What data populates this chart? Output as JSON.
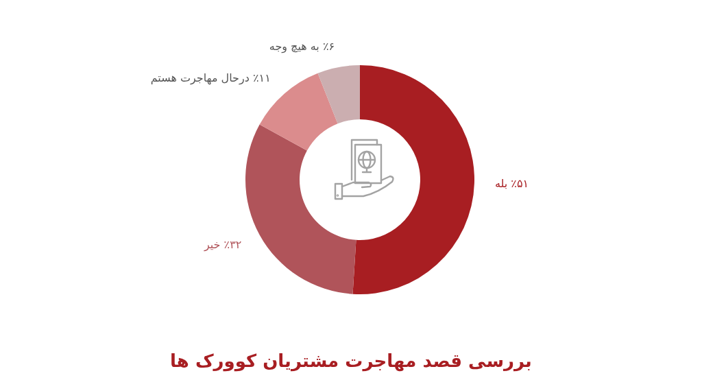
{
  "chart_data": {
    "type": "donut",
    "title": "بررسی قصد مهاجرت مشتریان کوورک ها",
    "categories": [
      "بله",
      "خیر",
      "درحال مهاجرت هستم",
      "به هیچ وجه"
    ],
    "values": [
      51,
      32,
      11,
      6
    ],
    "value_labels": [
      "٪۵۱",
      "٪۳۲",
      "٪۱۱",
      "٪۶"
    ],
    "colors": [
      "#a81e22",
      "#b0545a",
      "#db8c8d",
      "#cbaeb0"
    ]
  }
}
